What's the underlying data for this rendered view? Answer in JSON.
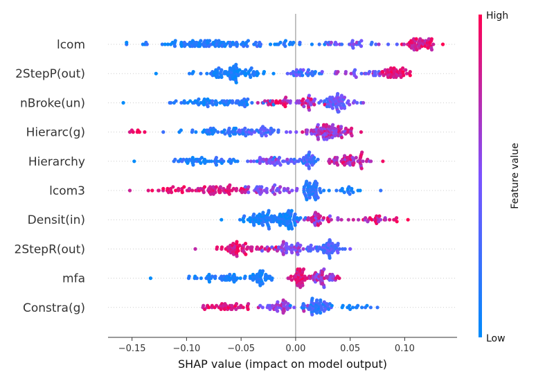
{
  "chart_data": {
    "type": "scatter",
    "subtype": "shap-beeswarm",
    "xlabel": "SHAP value (impact on model output)",
    "xlim": [
      -0.172,
      0.148
    ],
    "xticks": [
      -0.15,
      -0.1,
      -0.05,
      0.0,
      0.05,
      0.1
    ],
    "xtick_labels": [
      "−0.15",
      "−0.10",
      "−0.05",
      "0.00",
      "0.05",
      "0.10"
    ],
    "zero_line": 0,
    "colorbar": {
      "label": "Feature value",
      "high_label": "High",
      "low_label": "Low",
      "low_color": "#008bfb",
      "mid_color": "#7c52ff",
      "high_color": "#ff0052"
    },
    "features": [
      {
        "name": "lcom",
        "range": [
          -0.155,
          0.135
        ],
        "clusters": [
          {
            "center": -0.08,
            "spread": 0.04,
            "n": 90,
            "value_lo": 0.0,
            "value_hi": 0.25
          },
          {
            "center": -0.01,
            "spread": 0.03,
            "n": 20,
            "value_lo": 0.0,
            "value_hi": 0.3
          },
          {
            "center": 0.05,
            "spread": 0.03,
            "n": 30,
            "value_lo": 0.2,
            "value_hi": 0.7
          },
          {
            "center": 0.115,
            "spread": 0.012,
            "n": 50,
            "value_lo": 0.7,
            "value_hi": 1.0
          }
        ]
      },
      {
        "name": "2StepP(out)",
        "range": [
          -0.128,
          0.105
        ],
        "clusters": [
          {
            "center": -0.055,
            "spread": 0.025,
            "n": 85,
            "value_lo": 0.0,
            "value_hi": 0.2
          },
          {
            "center": 0.01,
            "spread": 0.015,
            "n": 30,
            "value_lo": 0.1,
            "value_hi": 0.5
          },
          {
            "center": 0.055,
            "spread": 0.025,
            "n": 25,
            "value_lo": 0.3,
            "value_hi": 0.7
          },
          {
            "center": 0.09,
            "spread": 0.012,
            "n": 45,
            "value_lo": 0.75,
            "value_hi": 1.0
          }
        ]
      },
      {
        "name": "nBroke(un)",
        "range": [
          -0.158,
          0.062
        ],
        "clusters": [
          {
            "center": -0.07,
            "spread": 0.04,
            "n": 70,
            "value_lo": 0.0,
            "value_hi": 0.25
          },
          {
            "center": -0.02,
            "spread": 0.015,
            "n": 20,
            "value_lo": 0.75,
            "value_hi": 1.0
          },
          {
            "center": 0.01,
            "spread": 0.015,
            "n": 35,
            "value_lo": 0.5,
            "value_hi": 0.95
          },
          {
            "center": 0.04,
            "spread": 0.012,
            "n": 60,
            "value_lo": 0.2,
            "value_hi": 0.6
          }
        ]
      },
      {
        "name": "Hierarc(g)",
        "range": [
          -0.152,
          0.06
        ],
        "clusters": [
          {
            "center": -0.145,
            "spread": 0.005,
            "n": 6,
            "value_lo": 0.85,
            "value_hi": 1.0
          },
          {
            "center": -0.08,
            "spread": 0.03,
            "n": 40,
            "value_lo": 0.0,
            "value_hi": 0.3
          },
          {
            "center": -0.035,
            "spread": 0.02,
            "n": 45,
            "value_lo": 0.1,
            "value_hi": 0.5
          },
          {
            "center": 0.03,
            "spread": 0.02,
            "n": 90,
            "value_lo": 0.45,
            "value_hi": 0.9
          }
        ]
      },
      {
        "name": "Hierarchy",
        "range": [
          -0.148,
          0.08
        ],
        "clusters": [
          {
            "center": -0.08,
            "spread": 0.035,
            "n": 50,
            "value_lo": 0.0,
            "value_hi": 0.3
          },
          {
            "center": -0.02,
            "spread": 0.02,
            "n": 40,
            "value_lo": 0.3,
            "value_hi": 0.7
          },
          {
            "center": 0.01,
            "spread": 0.01,
            "n": 35,
            "value_lo": 0.1,
            "value_hi": 0.5
          },
          {
            "center": 0.05,
            "spread": 0.02,
            "n": 55,
            "value_lo": 0.55,
            "value_hi": 0.95
          }
        ]
      },
      {
        "name": "lcom3",
        "range": [
          -0.152,
          0.078
        ],
        "clusters": [
          {
            "center": -0.12,
            "spread": 0.02,
            "n": 20,
            "value_lo": 0.8,
            "value_hi": 1.0
          },
          {
            "center": -0.07,
            "spread": 0.025,
            "n": 60,
            "value_lo": 0.75,
            "value_hi": 1.0
          },
          {
            "center": -0.02,
            "spread": 0.02,
            "n": 40,
            "value_lo": 0.35,
            "value_hi": 0.7
          },
          {
            "center": 0.015,
            "spread": 0.007,
            "n": 50,
            "value_lo": 0.05,
            "value_hi": 0.3
          },
          {
            "center": 0.05,
            "spread": 0.015,
            "n": 15,
            "value_lo": 0.0,
            "value_hi": 0.2
          }
        ]
      },
      {
        "name": "Densit(in)",
        "range": [
          -0.068,
          0.103
        ],
        "clusters": [
          {
            "center": -0.03,
            "spread": 0.02,
            "n": 70,
            "value_lo": 0.0,
            "value_hi": 0.2
          },
          {
            "center": -0.005,
            "spread": 0.01,
            "n": 45,
            "value_lo": 0.0,
            "value_hi": 0.2
          },
          {
            "center": 0.02,
            "spread": 0.012,
            "n": 35,
            "value_lo": 0.45,
            "value_hi": 0.95
          },
          {
            "center": 0.07,
            "spread": 0.025,
            "n": 30,
            "value_lo": 0.6,
            "value_hi": 1.0
          }
        ]
      },
      {
        "name": "2StepR(out)",
        "range": [
          -0.092,
          0.05
        ],
        "clusters": [
          {
            "center": -0.05,
            "spread": 0.02,
            "n": 60,
            "value_lo": 0.75,
            "value_hi": 1.0
          },
          {
            "center": -0.005,
            "spread": 0.015,
            "n": 45,
            "value_lo": 0.35,
            "value_hi": 0.75
          },
          {
            "center": 0.03,
            "spread": 0.012,
            "n": 55,
            "value_lo": 0.15,
            "value_hi": 0.5
          }
        ]
      },
      {
        "name": "mfa",
        "range": [
          -0.133,
          0.04
        ],
        "clusters": [
          {
            "center": -0.07,
            "spread": 0.03,
            "n": 45,
            "value_lo": 0.0,
            "value_hi": 0.2
          },
          {
            "center": -0.035,
            "spread": 0.012,
            "n": 35,
            "value_lo": 0.0,
            "value_hi": 0.2
          },
          {
            "center": 0.005,
            "spread": 0.008,
            "n": 45,
            "value_lo": 0.75,
            "value_hi": 1.0
          },
          {
            "center": 0.025,
            "spread": 0.01,
            "n": 45,
            "value_lo": 0.4,
            "value_hi": 0.9
          }
        ]
      },
      {
        "name": "Constra(g)",
        "range": [
          -0.085,
          0.075
        ],
        "clusters": [
          {
            "center": -0.06,
            "spread": 0.02,
            "n": 40,
            "value_lo": 0.75,
            "value_hi": 1.0
          },
          {
            "center": -0.015,
            "spread": 0.015,
            "n": 40,
            "value_lo": 0.4,
            "value_hi": 0.8
          },
          {
            "center": 0.02,
            "spread": 0.012,
            "n": 55,
            "value_lo": 0.05,
            "value_hi": 0.4
          },
          {
            "center": 0.055,
            "spread": 0.012,
            "n": 15,
            "value_lo": 0.0,
            "value_hi": 0.2
          }
        ]
      }
    ]
  }
}
